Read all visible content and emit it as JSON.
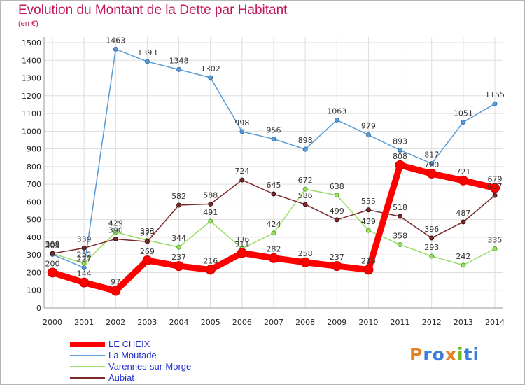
{
  "title": "Evolution du Montant de la Dette par Habitant",
  "subtitle": "(en €)",
  "brand": {
    "letters": [
      "P",
      "r",
      "o",
      "x",
      "i",
      "t",
      "i"
    ],
    "colors": [
      "#e67e22",
      "#3b7dd8",
      "#3b7dd8",
      "#e67e22",
      "#66bb22",
      "#3b7dd8",
      "#3b7dd8"
    ]
  },
  "chart_data": {
    "type": "line",
    "x": [
      "2000",
      "2001",
      "2002",
      "2003",
      "2004",
      "2005",
      "2006",
      "2007",
      "2008",
      "2009",
      "2010",
      "2011",
      "2012",
      "2013",
      "2014"
    ],
    "ylim": [
      0,
      1500
    ],
    "yticks": [
      "0",
      "100",
      "200",
      "300",
      "400",
      "500",
      "600",
      "700",
      "800",
      "900",
      "1000",
      "1100",
      "1200",
      "1300",
      "1400",
      "1500"
    ],
    "grid": true,
    "legend_position": "bottom-left",
    "series": [
      {
        "name": "LE CHEIX",
        "color": "#ff0000",
        "width": 9,
        "values": [
          200,
          144,
          97,
          269,
          237,
          216,
          311,
          282,
          258,
          237,
          216,
          808,
          760,
          721,
          679
        ],
        "labels": [
          "200",
          "144",
          "97",
          "269",
          "237",
          "216",
          "311",
          "282",
          "258",
          "237",
          "216",
          "808",
          "760",
          "721",
          "679"
        ]
      },
      {
        "name": "La Moutade",
        "color": "#5b9bd5",
        "width": 1.5,
        "values": [
          303,
          227,
          1463,
          1393,
          1348,
          1302,
          998,
          956,
          898,
          1063,
          979,
          893,
          817,
          1051,
          1155
        ],
        "labels": [
          "303",
          "227",
          "1463",
          "1393",
          "1348",
          "1302",
          "998",
          "956",
          "898",
          "1063",
          "979",
          "893",
          "817",
          "1051",
          "1155"
        ]
      },
      {
        "name": "Varennes-sur-Morge",
        "color": "#99dd66",
        "width": 1.5,
        "values": [
          308,
          252,
          429,
          383,
          344,
          491,
          336,
          424,
          672,
          638,
          439,
          358,
          293,
          242,
          335
        ],
        "labels": [
          "308",
          "252",
          "429",
          "383",
          "344",
          "491",
          "336",
          "424",
          "672",
          "638",
          "439",
          "358",
          "293",
          "242",
          "335"
        ]
      },
      {
        "name": "Aubiat",
        "color": "#7a2a2a",
        "width": 1.5,
        "values": [
          308,
          339,
          390,
          375,
          582,
          588,
          724,
          645,
          586,
          499,
          555,
          518,
          396,
          487,
          637
        ],
        "labels": [
          "308",
          "339",
          "390",
          "375",
          "582",
          "588",
          "724",
          "645",
          "586",
          "499",
          "555",
          "518",
          "396",
          "487",
          "637"
        ]
      }
    ]
  }
}
